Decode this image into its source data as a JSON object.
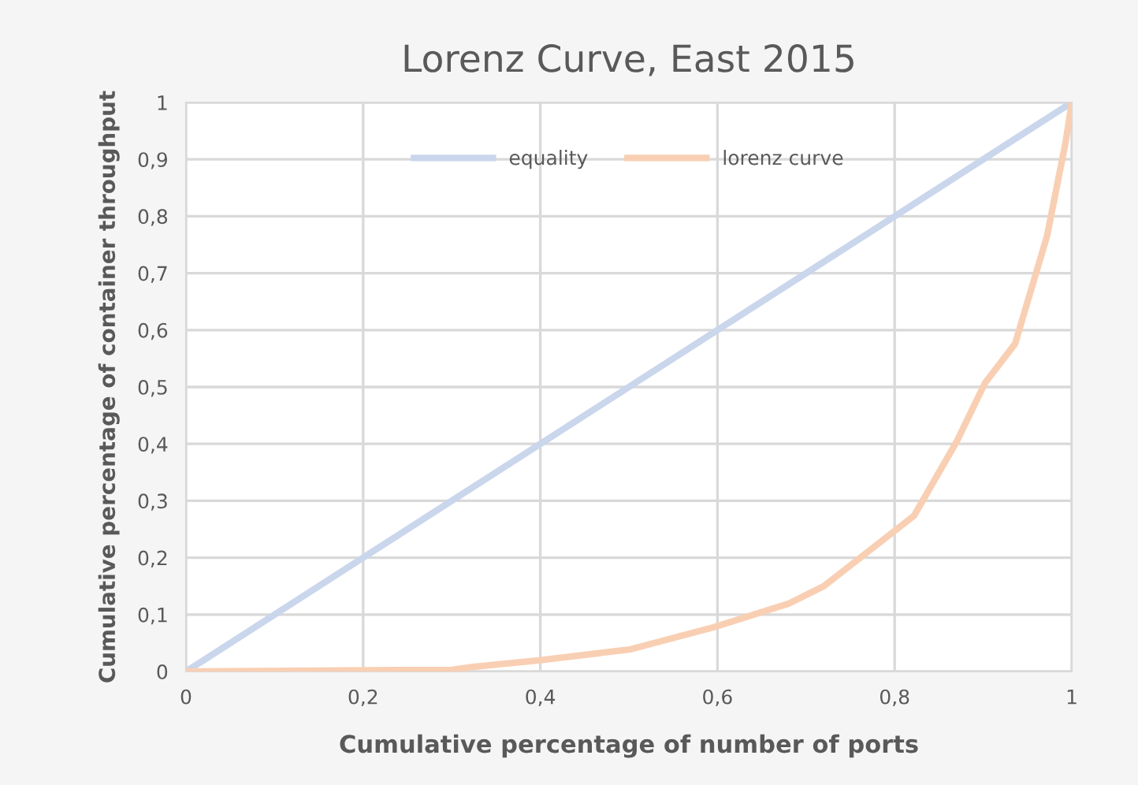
{
  "chart_data": {
    "type": "line",
    "title": "Lorenz Curve, East 2015",
    "xlabel": "Cumulative percentage of number of ports",
    "ylabel": "Cumulative percentage of container throughput",
    "series": [
      {
        "name": "equality",
        "color": "#c9d6ec",
        "x": [
          0,
          0.2,
          0.4,
          0.6,
          0.8,
          1
        ],
        "values": [
          0,
          0.2,
          0.4,
          0.6,
          0.8,
          1
        ]
      },
      {
        "name": "lorenz curve",
        "color": "#f9cfb3",
        "x": [
          0,
          0.3,
          0.324,
          0.4,
          0.502,
          0.596,
          0.68,
          0.72,
          0.822,
          0.87,
          0.902,
          0.936,
          0.972,
          0.993,
          1
        ],
        "values": [
          0,
          0.003,
          0.008,
          0.02,
          0.039,
          0.078,
          0.119,
          0.15,
          0.274,
          0.404,
          0.507,
          0.576,
          0.765,
          0.93,
          1
        ]
      }
    ],
    "xlim": [
      0,
      1
    ],
    "ylim": [
      0,
      1
    ],
    "xticks": [
      0,
      {
        "value": 0.2,
        "label": "0,2"
      },
      {
        "value": 0.4,
        "label": "0,4"
      },
      {
        "value": 0.6,
        "label": "0,6"
      },
      {
        "value": 0.8,
        "label": "0,8"
      },
      1
    ],
    "yticks": [
      0,
      {
        "value": 0.1,
        "label": "0,1"
      },
      {
        "value": 0.2,
        "label": "0,2"
      },
      {
        "value": 0.3,
        "label": "0,3"
      },
      {
        "value": 0.4,
        "label": "0,4"
      },
      {
        "value": 0.5,
        "label": "0,5"
      },
      {
        "value": 0.6,
        "label": "0,6"
      },
      {
        "value": 0.7,
        "label": "0,7"
      },
      {
        "value": 0.8,
        "label": "0,8"
      },
      {
        "value": 0.9,
        "label": "0,9"
      },
      1
    ],
    "grid": true,
    "legend": "top",
    "marker": "none",
    "line_style": "solid"
  }
}
